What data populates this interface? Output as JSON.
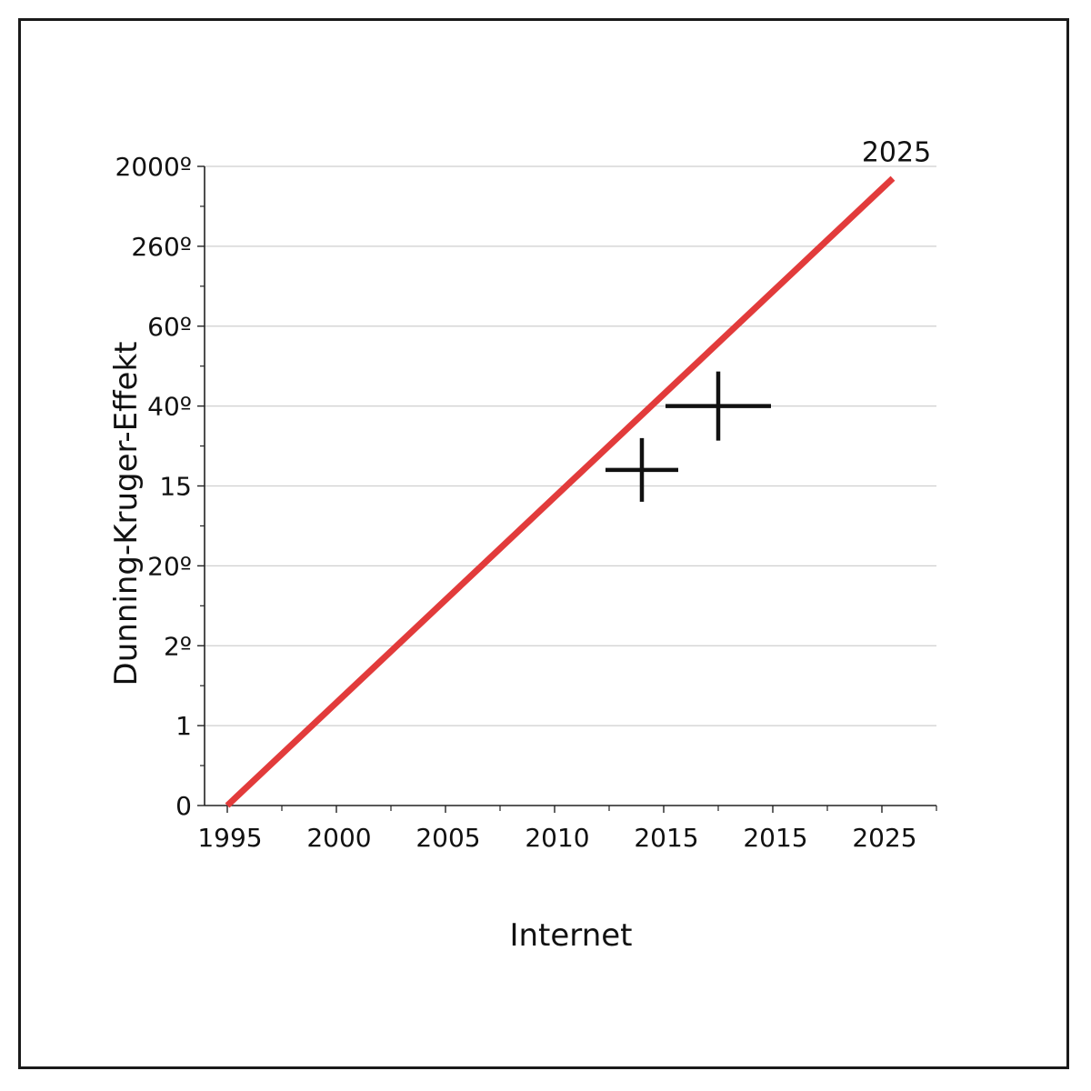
{
  "chart_data": {
    "type": "line",
    "title": "",
    "xlabel": "Internet",
    "ylabel": "Dunning-Kruger-Effekt",
    "x_tick_labels": [
      "1995",
      "2000",
      "2005",
      "2010",
      "2015",
      "2015",
      "2025"
    ],
    "y_tick_labels": [
      "0",
      "1",
      "2º",
      "20º",
      "15",
      "40º",
      "60º",
      "260º",
      "2000º"
    ],
    "xlim": [
      0,
      7
    ],
    "ylim": [
      0,
      8
    ],
    "grid": true,
    "series": [
      {
        "color": "#e23b3b",
        "points": [
          {
            "x": 0.5,
            "y": 0
          },
          {
            "x": 6.6,
            "y": 7.85
          }
        ]
      }
    ],
    "markers": [
      {
        "x": 4.3,
        "y": 4.2,
        "color": "#111111"
      },
      {
        "x": 5.0,
        "y": 5.0,
        "color": "#111111"
      }
    ],
    "annotations": [
      {
        "text": "2025",
        "x": 6.55,
        "y": 8.2
      }
    ]
  }
}
